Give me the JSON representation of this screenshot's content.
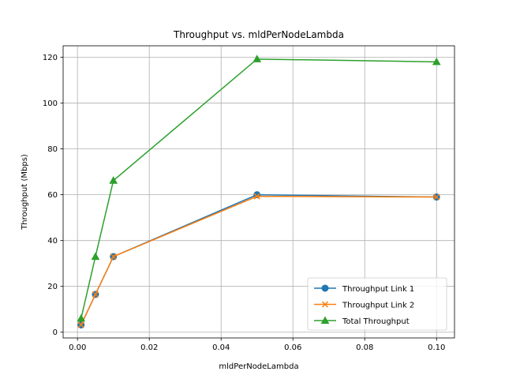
{
  "chart_data": {
    "type": "line",
    "title": "Throughput vs. mldPerNodeLambda",
    "xlabel": "mldPerNodeLambda",
    "ylabel": "Throughput (Mbps)",
    "x": [
      0.001,
      0.005,
      0.01,
      0.05,
      0.1
    ],
    "xlim": [
      -0.004,
      0.105
    ],
    "ylim": [
      -2.5,
      125
    ],
    "xticks": [
      0.0,
      0.02,
      0.04,
      0.06,
      0.08,
      0.1
    ],
    "xtick_labels": [
      "0.00",
      "0.02",
      "0.04",
      "0.06",
      "0.08",
      "0.10"
    ],
    "yticks": [
      0,
      20,
      40,
      60,
      80,
      100,
      120
    ],
    "ytick_labels": [
      "0",
      "20",
      "40",
      "60",
      "80",
      "100",
      "120"
    ],
    "grid": true,
    "legend_position": "lower-right",
    "series": [
      {
        "name": "Throughput Link 1",
        "values": [
          3.2,
          16.5,
          33.0,
          60.0,
          59.0
        ],
        "color": "#1f77b4",
        "marker": "circle"
      },
      {
        "name": "Throughput Link 2",
        "values": [
          3.2,
          16.5,
          33.0,
          59.3,
          59.0
        ],
        "color": "#ff7f0e",
        "marker": "x"
      },
      {
        "name": "Total Throughput",
        "values": [
          6.0,
          33.0,
          66.2,
          119.2,
          118.0
        ],
        "color": "#2ca02c",
        "marker": "triangle"
      }
    ]
  }
}
